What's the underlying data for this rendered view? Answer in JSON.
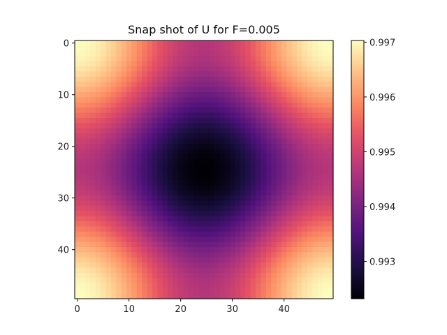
{
  "chart_data": {
    "type": "heatmap",
    "title": "Snap shot of  U for F=0.005",
    "grid_size": [
      50,
      50
    ],
    "xlabel": "",
    "ylabel": "",
    "x_ticks": [
      "0",
      "10",
      "20",
      "30",
      "40"
    ],
    "y_ticks": [
      "0",
      "10",
      "20",
      "30",
      "40"
    ],
    "x_tick_values": [
      0,
      10,
      20,
      30,
      40
    ],
    "y_tick_values": [
      0,
      10,
      20,
      30,
      40
    ],
    "xlim": [
      -0.5,
      49.5
    ],
    "ylim": [
      49.5,
      -0.5
    ],
    "y_inverted": true,
    "colormap": "magma",
    "value_range": [
      0.99232,
      0.99703
    ],
    "field": {
      "description_formula": "U(i,j) = mean + amp*(cos(2*pi*i/49)+cos(2*pi*j/49))/2 approx",
      "center_min": 0.99232,
      "corner_max": 0.99703,
      "period": 49
    },
    "colorbar": {
      "ticks": [
        "0.993",
        "0.994",
        "0.995",
        "0.996",
        "0.997"
      ],
      "tick_values": [
        0.993,
        0.994,
        0.995,
        0.996,
        0.997
      ]
    },
    "grid": false
  }
}
